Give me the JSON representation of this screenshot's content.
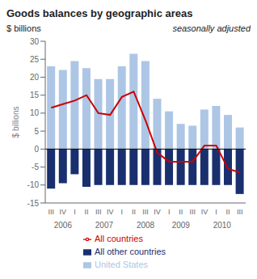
{
  "chart_data": {
    "type": "bar",
    "title": "Goods balances by geographic areas",
    "ylabel": "$ billions",
    "subtitle": "seasonally adjusted",
    "categories": [
      "III",
      "IV",
      "I",
      "II",
      "III",
      "IV",
      "I",
      "II",
      "III",
      "IV",
      "I",
      "II",
      "III",
      "IV",
      "I",
      "II",
      "III"
    ],
    "annotations": [
      {
        "text": "2006",
        "x": 1
      },
      {
        "text": "2007",
        "x": 4.5
      },
      {
        "text": "2008",
        "x": 8
      },
      {
        "text": "2009",
        "x": 11
      },
      {
        "text": "2010",
        "x": 14.5
      }
    ],
    "series": [
      {
        "name": "United States",
        "color": "#adc6e5",
        "values": [
          23,
          22,
          24.5,
          22.5,
          19.5,
          19.5,
          23,
          26.5,
          24.5,
          14,
          10.5,
          7,
          6.5,
          11,
          12,
          9.5,
          6
        ]
      },
      {
        "name": "All other countries",
        "color": "#1a2f6e",
        "values": [
          -11,
          -9.5,
          -7,
          -10.5,
          -10,
          -10,
          -10,
          -10,
          -10,
          -10,
          -10,
          -10,
          -10,
          -10,
          -10,
          -10,
          -12.5
        ]
      },
      {
        "name": "All countries",
        "type": "line",
        "color": "#cc0000",
        "values": [
          11.5,
          12.5,
          13.5,
          15,
          10,
          9.5,
          14.5,
          16,
          8,
          -1,
          -3.5,
          -3.5,
          -3.5,
          1,
          1,
          -5.5,
          -6.5
        ]
      }
    ],
    "ylim": [
      -15,
      30
    ],
    "yticks": [
      -15,
      -10,
      -5,
      0,
      5,
      10,
      15,
      20,
      25,
      30
    ],
    "stacked": true,
    "grid": false,
    "legend": "bottom"
  }
}
